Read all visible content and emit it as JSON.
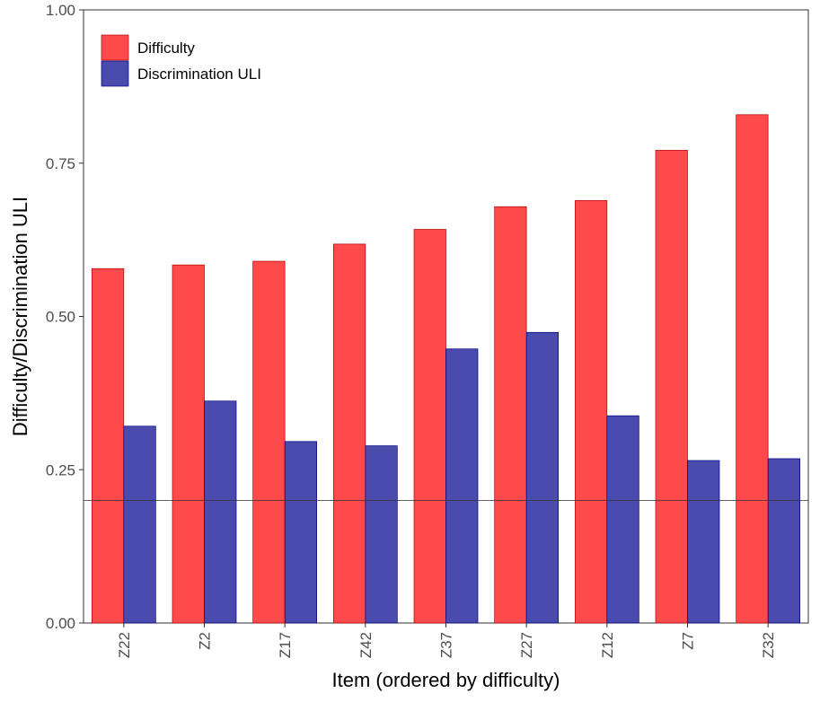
{
  "chart_data": {
    "type": "bar",
    "title": "",
    "xlabel": "Item (ordered by difficulty)",
    "ylabel": "Difficulty/Discrimination ULI",
    "categories": [
      "Z22",
      "Z2",
      "Z17",
      "Z42",
      "Z37",
      "Z27",
      "Z12",
      "Z7",
      "Z32"
    ],
    "series": [
      {
        "name": "Difficulty",
        "color": "#FF4A4C",
        "values": [
          0.578,
          0.584,
          0.59,
          0.618,
          0.642,
          0.679,
          0.689,
          0.771,
          0.829
        ]
      },
      {
        "name": "Discrimination ULI",
        "color": "#4B4BAD",
        "values": [
          0.321,
          0.362,
          0.296,
          0.289,
          0.447,
          0.474,
          0.338,
          0.265,
          0.268
        ]
      }
    ],
    "ylim": [
      0,
      1
    ],
    "yticks": [
      0.0,
      0.25,
      0.5,
      0.75,
      1.0
    ],
    "ytick_labels": [
      "0.00",
      "0.25",
      "0.50",
      "0.75",
      "1.00"
    ],
    "reference_line": 0.2,
    "grid": false,
    "legend_position": "top-left"
  }
}
